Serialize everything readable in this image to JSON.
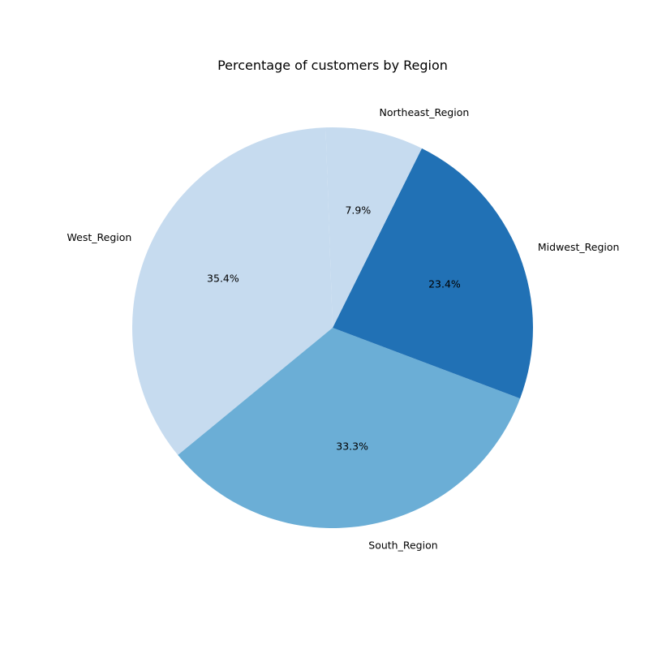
{
  "chart_data": {
    "type": "pie",
    "title": "Percentage of customers by Region",
    "slices": [
      {
        "label": "Northeast_Region",
        "value": 7.9,
        "pct_label": "7.9%",
        "color": "#c6dbef"
      },
      {
        "label": "West_Region",
        "value": 35.4,
        "pct_label": "35.4%",
        "color": "#c6dbef"
      },
      {
        "label": "South_Region",
        "value": 33.3,
        "pct_label": "33.3%",
        "color": "#6baed6"
      },
      {
        "label": "Midwest_Region",
        "value": 23.4,
        "pct_label": "23.4%",
        "color": "#2171b5"
      }
    ]
  }
}
